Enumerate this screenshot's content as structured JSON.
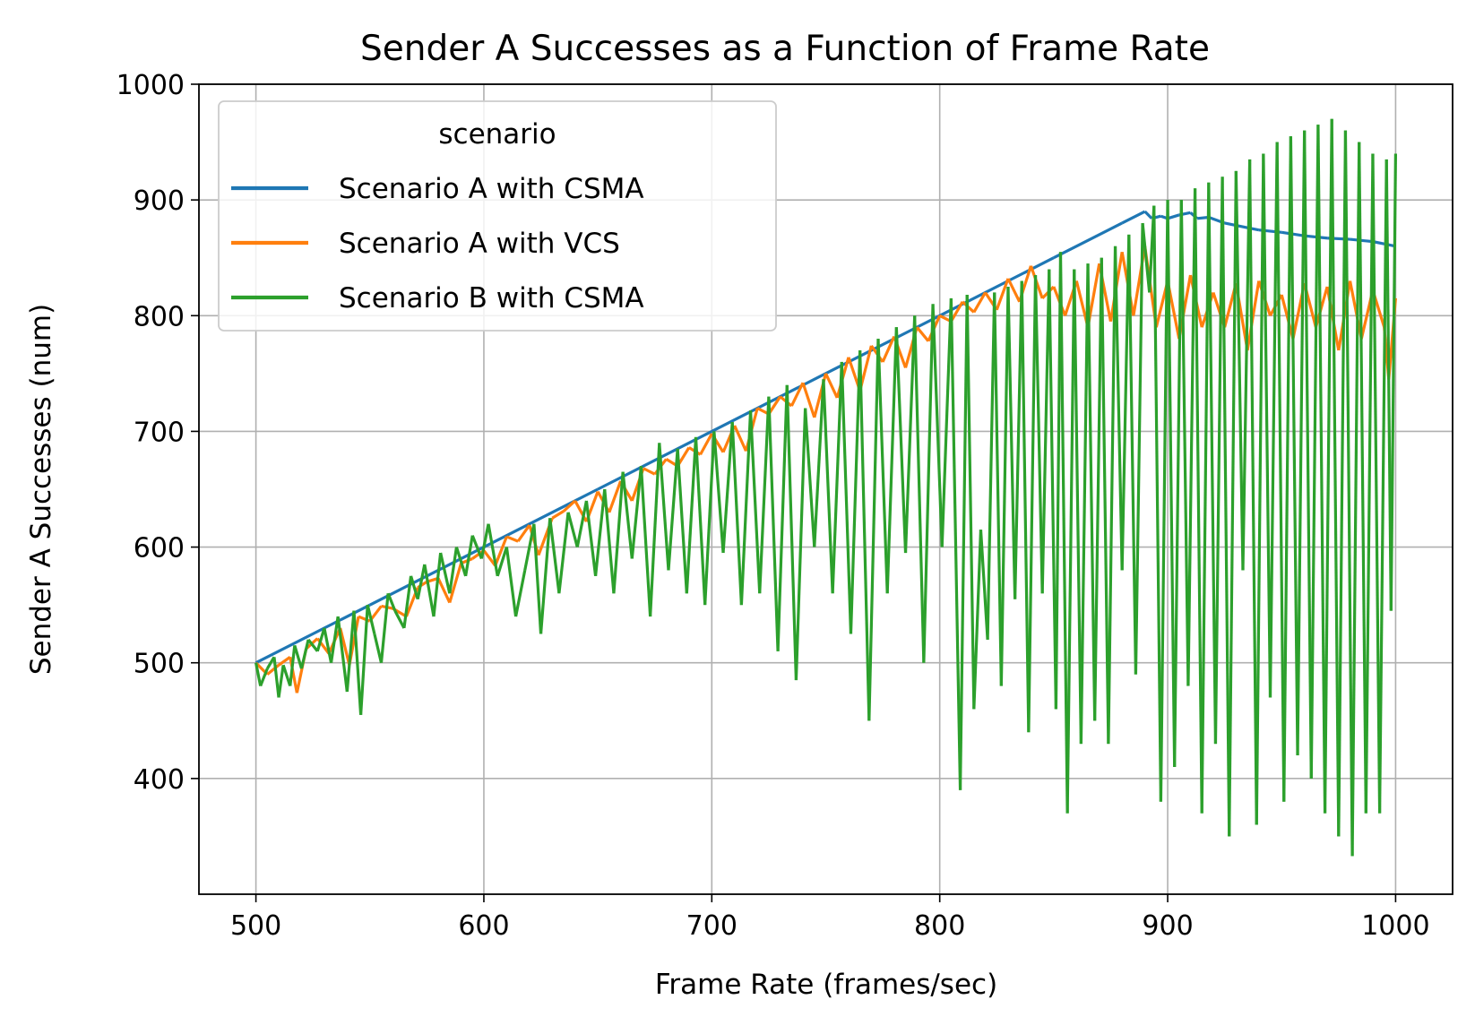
{
  "chart_data": {
    "type": "line",
    "title": "Sender A Successes as a Function of Frame Rate",
    "xlabel": "Frame Rate (frames/sec)",
    "ylabel": "Sender A Successes (num)",
    "xlim": [
      475,
      1025
    ],
    "ylim": [
      300,
      1000
    ],
    "xticks": [
      500,
      600,
      700,
      800,
      900,
      1000
    ],
    "yticks": [
      400,
      500,
      600,
      700,
      800,
      900,
      1000
    ],
    "grid": true,
    "legend": {
      "title": "scenario",
      "placement": "top-left"
    },
    "series": [
      {
        "name": "Scenario A with  CSMA",
        "color": "#1f77b4",
        "x": [
          500,
          550,
          600,
          650,
          700,
          750,
          800,
          850,
          880,
          890,
          893,
          897,
          900,
          905,
          910,
          913,
          918,
          925,
          930,
          940,
          950,
          960,
          970,
          980,
          990,
          995,
          1000
        ],
        "y": [
          500,
          550,
          600,
          650,
          700,
          750,
          800,
          850,
          880,
          890,
          884,
          886,
          884,
          887,
          889,
          884,
          885,
          880,
          878,
          874,
          872,
          869,
          867,
          866,
          864,
          862,
          860
        ]
      },
      {
        "name": "Scenario A with VCS",
        "color": "#ff7f0e",
        "x": [
          500,
          505,
          510,
          515,
          518,
          522,
          527,
          532,
          537,
          541,
          545,
          550,
          555,
          560,
          566,
          571,
          575,
          580,
          585,
          590,
          595,
          600,
          605,
          610,
          615,
          620,
          624,
          630,
          635,
          640,
          645,
          650,
          655,
          660,
          665,
          670,
          675,
          680,
          685,
          690,
          695,
          700,
          705,
          710,
          715,
          720,
          725,
          730,
          735,
          740,
          745,
          750,
          755,
          760,
          765,
          770,
          775,
          780,
          785,
          790,
          795,
          800,
          805,
          810,
          815,
          820,
          825,
          830,
          835,
          840,
          845,
          850,
          855,
          860,
          865,
          870,
          875,
          880,
          885,
          890,
          895,
          900,
          905,
          910,
          915,
          920,
          925,
          930,
          935,
          940,
          945,
          950,
          955,
          960,
          965,
          970,
          975,
          980,
          985,
          990,
          995,
          997,
          1000
        ],
        "y": [
          500,
          490,
          498,
          505,
          474,
          512,
          521,
          508,
          530,
          498,
          540,
          536,
          549,
          547,
          540,
          565,
          570,
          573,
          552,
          586,
          590,
          597,
          584,
          609,
          605,
          619,
          593,
          625,
          631,
          640,
          622,
          648,
          630,
          657,
          640,
          668,
          663,
          676,
          670,
          686,
          680,
          698,
          682,
          705,
          683,
          720,
          715,
          730,
          722,
          742,
          712,
          750,
          729,
          764,
          735,
          774,
          760,
          782,
          755,
          790,
          778,
          800,
          795,
          812,
          803,
          820,
          805,
          832,
          812,
          843,
          815,
          825,
          800,
          830,
          790,
          845,
          795,
          855,
          800,
          860,
          790,
          830,
          780,
          835,
          790,
          820,
          790,
          828,
          770,
          830,
          800,
          818,
          780,
          828,
          790,
          825,
          770,
          830,
          780,
          822,
          790,
          745,
          815
        ]
      },
      {
        "name": "Scenario B with CSMA",
        "color": "#2ca02c",
        "x": [
          500,
          502,
          505,
          508,
          510,
          512,
          515,
          517,
          520,
          523,
          527,
          530,
          533,
          536,
          540,
          543,
          546,
          549,
          552,
          555,
          558,
          561,
          565,
          568,
          571,
          574,
          578,
          581,
          585,
          588,
          592,
          595,
          599,
          602,
          606,
          610,
          614,
          618,
          622,
          625,
          629,
          633,
          637,
          641,
          645,
          649,
          653,
          657,
          661,
          665,
          669,
          673,
          677,
          681,
          685,
          689,
          693,
          697,
          701,
          705,
          709,
          713,
          717,
          721,
          725,
          729,
          733,
          737,
          741,
          745,
          749,
          753,
          757,
          761,
          765,
          769,
          773,
          777,
          781,
          785,
          789,
          793,
          797,
          801,
          805,
          809,
          812,
          815,
          818,
          821,
          824,
          827,
          830,
          833,
          836,
          839,
          842,
          845,
          848,
          851,
          853,
          856,
          859,
          862,
          865,
          868,
          871,
          874,
          877,
          880,
          883,
          886,
          889,
          892,
          894,
          897,
          900,
          903,
          906,
          909,
          912,
          915,
          918,
          921,
          924,
          927,
          930,
          933,
          936,
          939,
          942,
          945,
          948,
          951,
          954,
          957,
          960,
          963,
          966,
          969,
          972,
          975,
          978,
          981,
          984,
          987,
          990,
          993,
          996,
          998,
          1000
        ],
        "y": [
          500,
          480,
          495,
          505,
          470,
          498,
          480,
          515,
          495,
          520,
          510,
          530,
          500,
          540,
          475,
          545,
          455,
          550,
          525,
          500,
          560,
          545,
          530,
          575,
          555,
          585,
          540,
          595,
          560,
          600,
          575,
          610,
          590,
          620,
          575,
          600,
          540,
          580,
          620,
          525,
          625,
          560,
          630,
          600,
          640,
          575,
          650,
          560,
          665,
          590,
          670,
          540,
          690,
          580,
          685,
          560,
          695,
          550,
          700,
          595,
          708,
          550,
          718,
          560,
          730,
          510,
          740,
          485,
          720,
          600,
          745,
          560,
          760,
          525,
          770,
          450,
          780,
          560,
          790,
          595,
          800,
          500,
          810,
          600,
          815,
          390,
          818,
          460,
          615,
          520,
          820,
          480,
          825,
          555,
          830,
          440,
          835,
          560,
          840,
          460,
          855,
          370,
          840,
          430,
          845,
          450,
          850,
          430,
          860,
          580,
          870,
          490,
          880,
          820,
          895,
          380,
          900,
          410,
          900,
          480,
          910,
          370,
          915,
          430,
          920,
          350,
          925,
          580,
          935,
          360,
          940,
          470,
          950,
          380,
          955,
          420,
          960,
          400,
          965,
          370,
          970,
          350,
          960,
          333,
          950,
          370,
          940,
          370,
          935,
          545,
          940
        ]
      }
    ]
  }
}
